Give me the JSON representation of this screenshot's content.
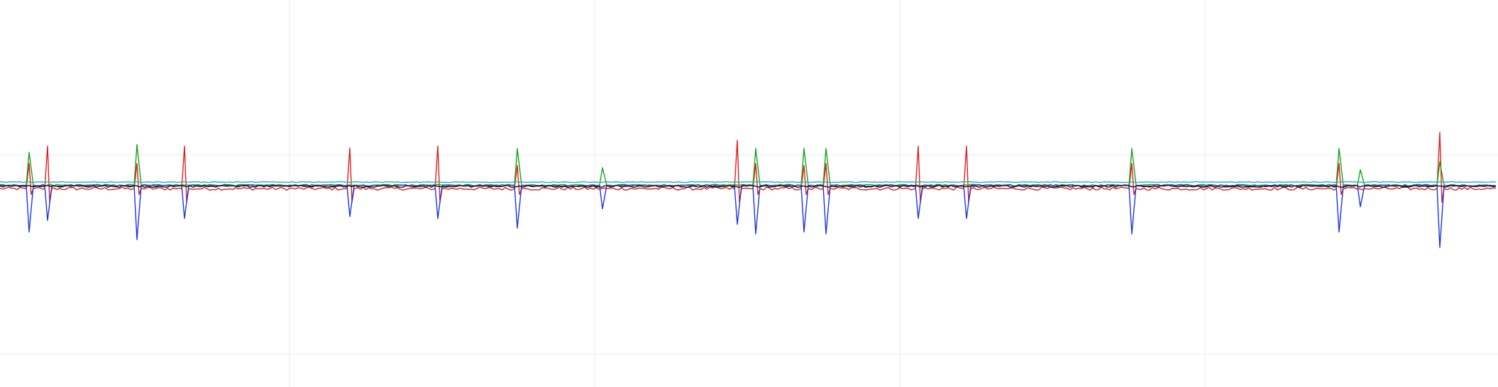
{
  "chart_data": {
    "type": "line",
    "title": "",
    "xlabel": "",
    "ylabel": "",
    "grid": true,
    "legend": "none",
    "xlim": [
      0,
      2111
    ],
    "ylim": [
      -1,
      1
    ],
    "x_gridlines": [
      408,
      838,
      1268,
      1698
    ],
    "y_gridlines": [
      0.2,
      -0.83
    ],
    "baseline": 0.025,
    "series": [
      {
        "color": "#e01e1e",
        "level": 0.0,
        "noise": 0.008,
        "spikes": [
          {
            "x": 68,
            "v": 0.22,
            "dip": -0.07
          },
          {
            "x": 261,
            "v": 0.22,
            "dip": -0.07
          },
          {
            "x": 494,
            "v": 0.21,
            "dip": -0.07
          },
          {
            "x": 618,
            "v": 0.22,
            "dip": -0.07
          },
          {
            "x": 1040,
            "v": 0.25,
            "dip": -0.07
          },
          {
            "x": 1295,
            "v": 0.22,
            "dip": -0.07
          },
          {
            "x": 1363,
            "v": 0.22,
            "dip": -0.07
          },
          {
            "x": 2030,
            "v": 0.29,
            "dip": -0.07
          },
          {
            "x": 42,
            "v": 0.13,
            "dip": -0.03
          },
          {
            "x": 194,
            "v": 0.13,
            "dip": -0.03
          },
          {
            "x": 730,
            "v": 0.12,
            "dip": -0.03
          },
          {
            "x": 1066,
            "v": 0.13,
            "dip": -0.03
          },
          {
            "x": 1134,
            "v": 0.12,
            "dip": -0.03
          },
          {
            "x": 1165,
            "v": 0.13,
            "dip": -0.03
          },
          {
            "x": 1596,
            "v": 0.13,
            "dip": -0.03
          },
          {
            "x": 1888,
            "v": 0.13,
            "dip": -0.03
          }
        ]
      },
      {
        "color": "#1aa01a",
        "level": 0.018,
        "noise": 0.004,
        "spikes": [
          {
            "x": 42,
            "v": 0.17,
            "dip": 0
          },
          {
            "x": 194,
            "v": 0.21,
            "dip": 0
          },
          {
            "x": 730,
            "v": 0.19,
            "dip": 0
          },
          {
            "x": 850,
            "v": 0.09,
            "dip": 0
          },
          {
            "x": 1066,
            "v": 0.19,
            "dip": 0
          },
          {
            "x": 1134,
            "v": 0.19,
            "dip": 0
          },
          {
            "x": 1165,
            "v": 0.19,
            "dip": 0
          },
          {
            "x": 1596,
            "v": 0.19,
            "dip": 0
          },
          {
            "x": 1888,
            "v": 0.19,
            "dip": 0
          },
          {
            "x": 1918,
            "v": 0.08,
            "dip": 0
          },
          {
            "x": 2030,
            "v": 0.12,
            "dip": 0
          }
        ]
      },
      {
        "color": "#1e32e6",
        "level": 0.016,
        "noise": 0.004,
        "spikes": [
          {
            "x": 42,
            "v": -0.24,
            "dip": 0
          },
          {
            "x": 68,
            "v": -0.18,
            "dip": 0
          },
          {
            "x": 194,
            "v": -0.28,
            "dip": 0
          },
          {
            "x": 261,
            "v": -0.17,
            "dip": 0
          },
          {
            "x": 494,
            "v": -0.16,
            "dip": 0
          },
          {
            "x": 618,
            "v": -0.17,
            "dip": 0
          },
          {
            "x": 730,
            "v": -0.22,
            "dip": 0
          },
          {
            "x": 850,
            "v": -0.12,
            "dip": 0
          },
          {
            "x": 1040,
            "v": -0.2,
            "dip": 0
          },
          {
            "x": 1066,
            "v": -0.25,
            "dip": 0
          },
          {
            "x": 1134,
            "v": -0.24,
            "dip": 0
          },
          {
            "x": 1165,
            "v": -0.25,
            "dip": 0
          },
          {
            "x": 1295,
            "v": -0.17,
            "dip": 0
          },
          {
            "x": 1363,
            "v": -0.17,
            "dip": 0
          },
          {
            "x": 1596,
            "v": -0.25,
            "dip": 0
          },
          {
            "x": 1888,
            "v": -0.24,
            "dip": 0
          },
          {
            "x": 1918,
            "v": -0.11,
            "dip": 0
          },
          {
            "x": 2030,
            "v": -0.32,
            "dip": 0
          }
        ]
      },
      {
        "color": "#111111",
        "level": 0.012,
        "noise": 0.005,
        "spikes": []
      },
      {
        "color": "#2aaeae",
        "level": 0.034,
        "noise": 0.002,
        "spikes": []
      }
    ]
  }
}
